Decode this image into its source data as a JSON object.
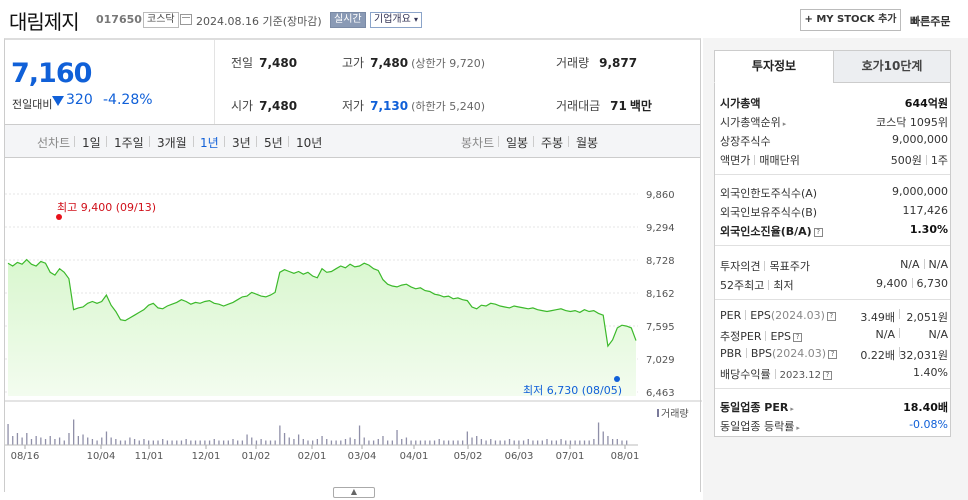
{
  "header": {
    "company_name": "대림제지",
    "stock_code": "017650",
    "market": "코스닥",
    "base_date": "2024.08.16 기준(장마감)",
    "realtime_label": "실시간",
    "company_overview": "기업개요",
    "mystock_button": "+ MY STOCK 추가",
    "quick_order": "빠른주문"
  },
  "quote": {
    "price": "7,160",
    "change_label": "전일대비",
    "change": "320",
    "change_pct": "-4.28%",
    "prev_close": {
      "label": "전일",
      "value": "7,480"
    },
    "high": {
      "label": "고가",
      "value": "7,480",
      "sub": "(상한가 9,720)"
    },
    "volume": {
      "label": "거래량",
      "value": "9,877"
    },
    "open": {
      "label": "시가",
      "value": "7,480"
    },
    "low": {
      "label": "저가",
      "value": "7,130",
      "sub": "(하한가 5,240)"
    },
    "trade_amount": {
      "label": "거래대금",
      "value": "71",
      "unit": "백만"
    }
  },
  "toolbar": {
    "line_chart_label": "선차트",
    "periods": [
      "1일",
      "1주일",
      "3개월",
      "1년",
      "3년",
      "5년",
      "10년"
    ],
    "selected_period": "1년",
    "candle_chart_label": "봉차트",
    "candle_periods": [
      "일봉",
      "주봉",
      "월봉"
    ]
  },
  "chart_data": {
    "type": "area",
    "x_labels": [
      "08/16",
      "10/04",
      "11/01",
      "12/01",
      "01/02",
      "02/01",
      "03/04",
      "04/01",
      "05/02",
      "06/03",
      "07/01",
      "08/01"
    ],
    "y_ticks": [
      "9,860",
      "9,294",
      "8,728",
      "8,162",
      "7,595",
      "7,029",
      "6,463"
    ],
    "ylim": [
      6463,
      9860
    ],
    "high_annotation": "최고 9,400 (09/13)",
    "low_annotation": "최저 6,730 (08/05)",
    "volume_legend": "거래량",
    "series_color": "#3cb92b",
    "fill_color": "#d9f7cf",
    "prices": [
      8672,
      8625,
      8687,
      8656,
      8734,
      8656,
      8625,
      8703,
      8672,
      8516,
      8469,
      8578,
      8516,
      8406,
      7875,
      7906,
      7922,
      7984,
      8016,
      7984,
      8016,
      8125,
      7953,
      7844,
      7703,
      7688,
      7734,
      7781,
      7828,
      7875,
      7953,
      7984,
      7906,
      7891,
      7938,
      7969,
      8000,
      8047,
      8016,
      7969,
      8000,
      7984,
      8016,
      8031,
      7984,
      7969,
      7938,
      7969,
      8000,
      8047,
      8094,
      8109,
      8172,
      8141,
      8109,
      8094,
      8125,
      8172,
      8516,
      8562,
      8531,
      8500,
      8531,
      8484,
      8516,
      8453,
      8422,
      8578,
      8516,
      8531,
      8578,
      8625,
      8594,
      8656,
      8609,
      8625,
      8672,
      8641,
      8578,
      8547,
      8391,
      8312,
      8281,
      8266,
      8297,
      8312,
      8266,
      8234,
      8250,
      8203,
      8188,
      8141,
      8125,
      8094,
      8109,
      8062,
      8078,
      8047,
      8031,
      7922,
      7891,
      7953,
      7938,
      7984,
      7969,
      7938,
      7922,
      7906,
      7938,
      7922,
      7906,
      7891,
      7906,
      7875,
      7859,
      7844,
      7859,
      7875,
      7891,
      7859,
      7844,
      7859,
      7828,
      7875,
      7844,
      7859,
      7812,
      7781,
      7250,
      7359,
      7562,
      7609,
      7594,
      7562,
      7344
    ],
    "volumes": [
      14,
      6,
      8,
      5,
      8,
      4,
      6,
      5,
      4,
      6,
      4,
      5,
      3,
      8,
      17,
      6,
      7,
      5,
      4,
      3,
      5,
      9,
      5,
      4,
      3,
      3,
      5,
      4,
      3,
      4,
      3,
      3,
      3,
      4,
      3,
      3,
      3,
      3,
      4,
      3,
      3,
      3,
      3,
      3,
      4,
      3,
      3,
      3,
      4,
      3,
      3,
      7,
      5,
      3,
      4,
      3,
      3,
      3,
      13,
      8,
      5,
      4,
      7,
      4,
      3,
      3,
      4,
      6,
      4,
      3,
      3,
      3,
      4,
      5,
      4,
      13,
      5,
      3,
      3,
      4,
      6,
      3,
      3,
      10,
      4,
      5,
      3,
      3,
      3,
      3,
      3,
      3,
      4,
      3,
      3,
      3,
      3,
      3,
      9,
      5,
      6,
      4,
      3,
      4,
      3,
      3,
      3,
      4,
      3,
      3,
      3,
      4,
      3,
      3,
      3,
      4,
      3,
      3,
      4,
      3,
      3,
      3,
      3,
      3,
      3,
      4,
      15,
      9,
      6,
      4,
      4,
      3,
      3
    ]
  },
  "investment_info": {
    "tabs": [
      "투자정보",
      "호가10단계"
    ],
    "market_cap": {
      "label": "시가총액",
      "value": "644억원"
    },
    "market_cap_rank": {
      "label": "시가총액순위",
      "value": "코스닥 1095위"
    },
    "shares_listed": {
      "label": "상장주식수",
      "value": "9,000,000"
    },
    "par_value_label": "액면가",
    "trading_unit_label": "매매단위",
    "par_value": "500원",
    "trading_unit": "1주",
    "foreign_limit": {
      "label": "외국인한도주식수(A)",
      "value": "9,000,000"
    },
    "foreign_held": {
      "label": "외국인보유주식수(B)",
      "value": "117,426"
    },
    "foreign_ratio": {
      "label": "외국인소진율(B/A)",
      "value": "1.30%"
    },
    "opinion_label": "투자의견",
    "target_label": "목표주가",
    "opinion": "N/A",
    "target": "N/A",
    "w52_high_label": "52주최고",
    "w52_low_label": "최저",
    "w52_high": "9,400",
    "w52_low": "6,730",
    "per_label": "PER",
    "eps_label": "EPS",
    "eps_year": "(2024.03)",
    "per": "3.49배",
    "eps": "2,051원",
    "est_per_label": "추정PER",
    "est_eps_label": "EPS",
    "est_per": "N/A",
    "est_eps": "N/A",
    "pbr_label": "PBR",
    "bps_label": "BPS",
    "bps_year": "(2024.03)",
    "pbr": "0.22배",
    "bps": "32,031원",
    "div_label": "배당수익률",
    "div_year": "2023.12",
    "div_yield": "1.40%",
    "industry_per": {
      "label": "동일업종 PER",
      "value": "18.40배"
    },
    "industry_change": {
      "label": "동일업종 등락률",
      "value": "-0.08%"
    }
  }
}
